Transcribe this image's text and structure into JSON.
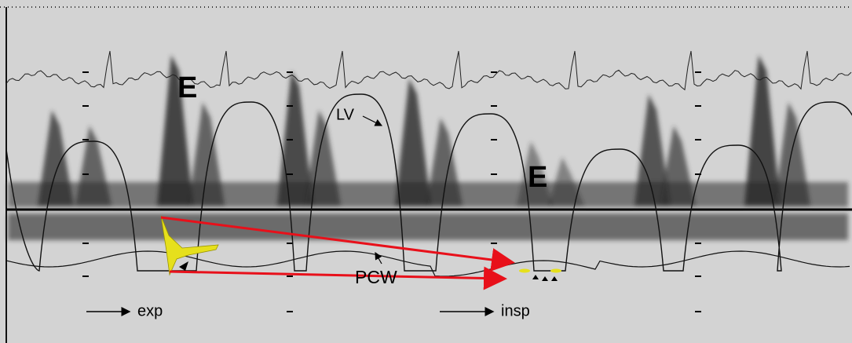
{
  "labels": {
    "e_wave_1": "E",
    "lv": "LV",
    "e_wave_2": "E",
    "pcw": "PCW",
    "exp": "exp",
    "insp": "insp"
  }
}
